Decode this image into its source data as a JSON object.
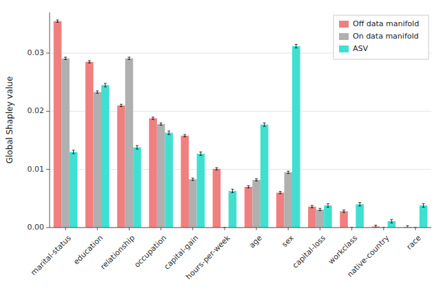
{
  "chart_data": {
    "type": "bar",
    "categories": [
      "marital-status",
      "education",
      "relationship",
      "occupation",
      "capital-gain",
      "hours-per-week",
      "age",
      "sex",
      "capital-loss",
      "workclass",
      "native-country",
      "race"
    ],
    "series": [
      {
        "name": "Off data manifold",
        "color": "#F08080",
        "values": [
          0.0355,
          0.0285,
          0.021,
          0.0188,
          0.0158,
          0.0101,
          0.007,
          0.006,
          0.0036,
          0.0028,
          0.0002,
          0.0001
        ],
        "errors": [
          0.0002,
          0.0002,
          0.0002,
          0.0002,
          0.0002,
          0.0002,
          0.0002,
          0.0002,
          0.0002,
          0.0002,
          0.0002,
          0.0002
        ]
      },
      {
        "name": "On data manifold",
        "color": "#B0B0B0",
        "values": [
          0.0291,
          0.0233,
          0.0291,
          0.0178,
          0.0083,
          0.0,
          0.0082,
          0.0095,
          0.0031,
          0.0,
          0.0,
          0.0
        ],
        "errors": [
          0.0002,
          0.0002,
          0.0002,
          0.0002,
          0.0002,
          0.0,
          0.0002,
          0.0002,
          0.0002,
          0.0,
          0.0,
          0.0
        ]
      },
      {
        "name": "ASV",
        "color": "#40E0D0",
        "values": [
          0.013,
          0.0245,
          0.0138,
          0.0163,
          0.0127,
          0.0063,
          0.0177,
          0.0312,
          0.0038,
          0.004,
          0.0011,
          0.0038
        ],
        "errors": [
          0.0003,
          0.0003,
          0.0003,
          0.0003,
          0.0003,
          0.0003,
          0.0003,
          0.0003,
          0.0003,
          0.0003,
          0.0003,
          0.0003
        ]
      }
    ],
    "ylabel": "Global Shapley value",
    "ylim": [
      0,
      0.037
    ],
    "yticks": [
      {
        "value": 0,
        "label": "0.00"
      },
      0.01,
      0.02,
      0.03
    ],
    "grid": true,
    "legend": "upper-right"
  }
}
